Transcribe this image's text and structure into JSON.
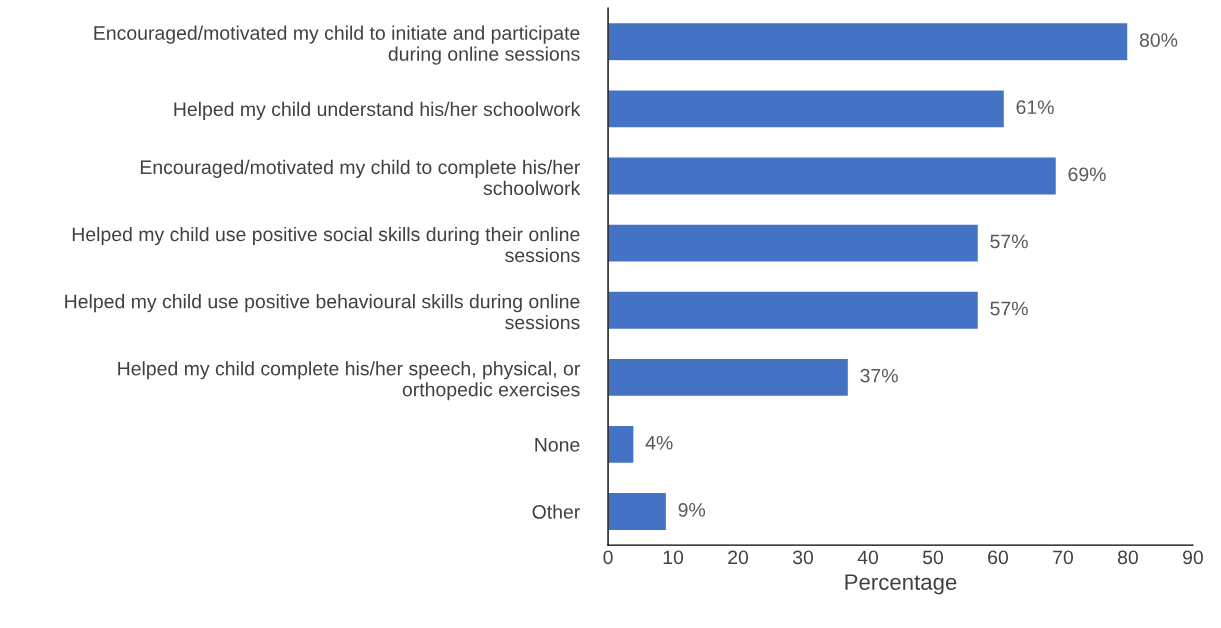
{
  "chart_data": {
    "type": "bar",
    "orientation": "horizontal",
    "categories": [
      "Encouraged/motivated my child to initiate and participate\nduring online sessions",
      "Helped my child understand his/her schoolwork",
      "Encouraged/motivated my child to complete his/her\nschoolwork",
      "Helped my child use positive social skills during their online\nsessions",
      "Helped my child use positive behavioural skills during online\nsessions",
      "Helped my child complete his/her speech, physical, or\northopedic exercises",
      "None",
      "Other"
    ],
    "values": [
      80,
      61,
      69,
      57,
      57,
      37,
      4,
      9
    ],
    "value_labels": [
      "80%",
      "61%",
      "69%",
      "57%",
      "57%",
      "37%",
      "4%",
      "9%"
    ],
    "color": "#4472c4",
    "xlabel": "Percentage",
    "xlim": [
      0,
      90
    ],
    "xticks": [
      0,
      10,
      20,
      30,
      40,
      50,
      60,
      70,
      80,
      90
    ],
    "grid": false,
    "legend": false
  }
}
